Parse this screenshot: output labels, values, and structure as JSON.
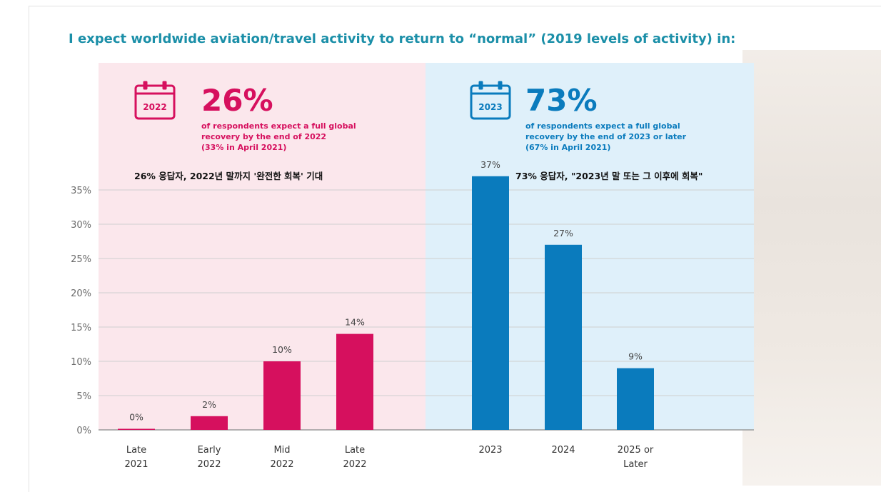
{
  "colors": {
    "left_accent": "#d6105e",
    "right_accent": "#0a7bbd",
    "left_panel_bg": "#fbe7ec",
    "right_panel_bg": "#dff0fa",
    "title_color": "#1b8fa8",
    "grid": "#cfcfcf"
  },
  "icons": {
    "left": "calendar-icon",
    "right": "calendar-icon"
  },
  "chart_data": {
    "type": "bar",
    "title": "I expect worldwide aviation/travel activity to return to “normal” (2019 levels of activity) in:",
    "ylim": [
      0,
      35
    ],
    "yticks": [
      "0%",
      "5%",
      "10%",
      "15%",
      "20%",
      "25%",
      "30%",
      "35%"
    ],
    "ytick_values": [
      0,
      5,
      10,
      15,
      20,
      25,
      30,
      35
    ],
    "grid": true,
    "categories": [
      [
        "Late",
        "2021"
      ],
      [
        "Early",
        "2022"
      ],
      [
        "Mid",
        "2022"
      ],
      [
        "Late",
        "2022"
      ],
      [
        "2023"
      ],
      [
        "2024"
      ],
      [
        "2025 or",
        "Later"
      ]
    ],
    "values": [
      0,
      2,
      10,
      14,
      37,
      27,
      9
    ],
    "data_labels": [
      "0%",
      "2%",
      "10%",
      "14%",
      "37%",
      "27%",
      "9%"
    ],
    "groups": [
      0,
      0,
      0,
      0,
      1,
      1,
      1
    ]
  },
  "panels": [
    {
      "calendar_year": "2022",
      "big_percent": "26%",
      "lines": [
        "of respondents expect a full global",
        "recovery by the end of 2022",
        "(33% in April 2021)"
      ],
      "korean": "26% 응답자, 2022년 말까지 '완전한 회복' 기대"
    },
    {
      "calendar_year": "2023",
      "big_percent": "73%",
      "lines": [
        "of respondents expect a full global",
        "recovery by the end of 2023 or later",
        "(67% in April 2021)"
      ],
      "korean": "73% 응답자, \"2023년 말 또는 그 이후에 회복\""
    }
  ]
}
